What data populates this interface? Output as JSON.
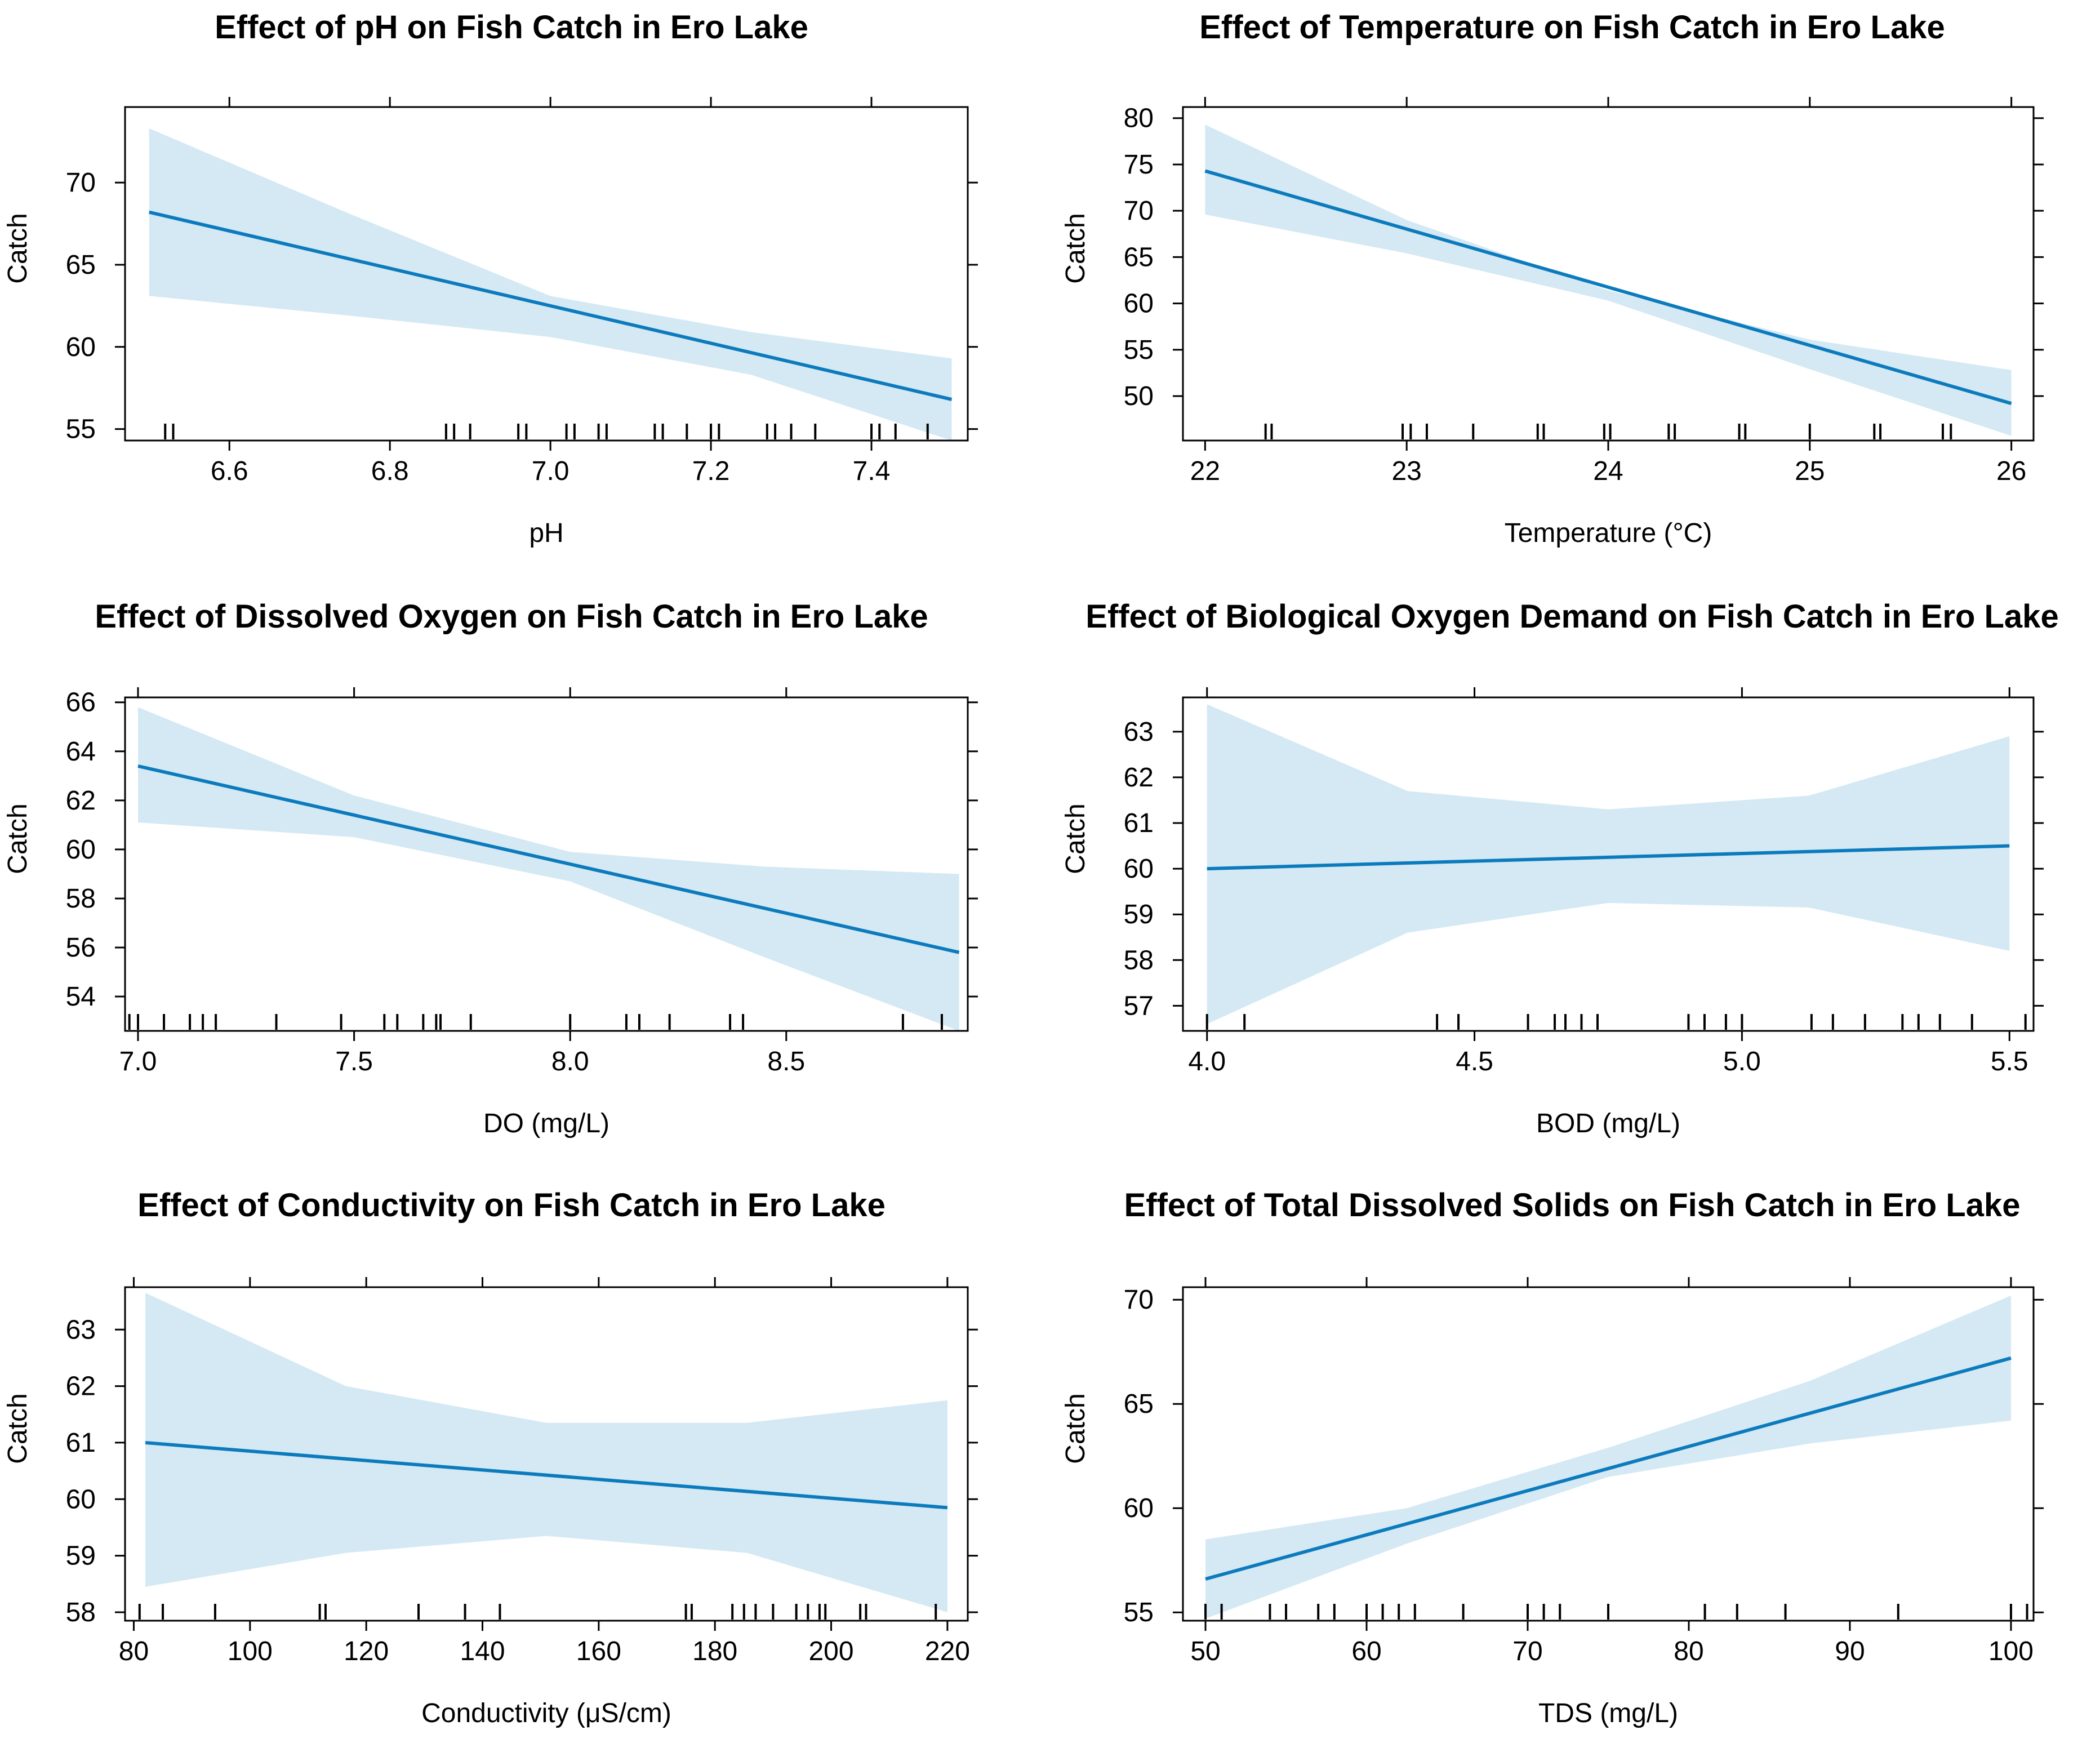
{
  "colors": {
    "line": "#0C7BBD",
    "band": "#D4E9F4",
    "axis": "#000000"
  },
  "chart_data": [
    {
      "type": "line",
      "title": "Effect of pH on Fish Catch in Ero Lake",
      "xlabel": "pH",
      "ylabel": "Catch",
      "xlim": [
        6.47,
        7.52
      ],
      "ylim": [
        54.3,
        74.6
      ],
      "xticks": [
        6.6,
        6.8,
        7.0,
        7.2,
        7.4
      ],
      "xtick_labels": [
        "6.6",
        "6.8",
        "7.0",
        "7.2",
        "7.4"
      ],
      "yticks": [
        55,
        60,
        65,
        70
      ],
      "ytick_labels": [
        "55",
        "60",
        "65",
        "70"
      ],
      "fit": {
        "x": [
          6.5,
          7.5
        ],
        "y": [
          68.2,
          56.8
        ]
      },
      "band": {
        "x": [
          6.5,
          6.75,
          7.0,
          7.25,
          7.5
        ],
        "lower": [
          63.1,
          61.9,
          60.6,
          58.3,
          54.3
        ],
        "upper": [
          73.3,
          68.1,
          63.1,
          60.9,
          59.3
        ]
      },
      "rug": [
        6.52,
        6.53,
        6.87,
        6.88,
        6.9,
        6.96,
        6.97,
        7.02,
        7.03,
        7.06,
        7.07,
        7.13,
        7.14,
        7.17,
        7.2,
        7.21,
        7.27,
        7.28,
        7.3,
        7.33,
        7.4,
        7.41,
        7.43,
        7.47
      ]
    },
    {
      "type": "line",
      "title": "Effect of Temperature on Fish Catch in Ero Lake",
      "xlabel": "Temperature (°C)",
      "ylabel": "Catch",
      "xlim": [
        21.89,
        26.11
      ],
      "ylim": [
        45.2,
        81.2
      ],
      "xticks": [
        22,
        23,
        24,
        25,
        26
      ],
      "xtick_labels": [
        "22",
        "23",
        "24",
        "25",
        "26"
      ],
      "yticks": [
        50,
        55,
        60,
        65,
        70,
        75,
        80
      ],
      "ytick_labels": [
        "50",
        "55",
        "60",
        "65",
        "70",
        "75",
        "80"
      ],
      "fit": {
        "x": [
          22,
          26
        ],
        "y": [
          74.3,
          49.2
        ]
      },
      "band": {
        "x": [
          22,
          23,
          24,
          25,
          26
        ],
        "lower": [
          69.6,
          65.4,
          60.3,
          52.9,
          45.7
        ],
        "upper": [
          79.3,
          69.0,
          61.4,
          56.1,
          52.8
        ]
      },
      "rug": [
        22.3,
        22.33,
        22.98,
        23.02,
        23.1,
        23.33,
        23.65,
        23.68,
        23.98,
        24.01,
        24.3,
        24.33,
        24.65,
        24.68,
        25.0,
        25.32,
        25.35,
        25.66,
        25.7
      ]
    },
    {
      "type": "line",
      "title": "Effect of Dissolved Oxygen on Fish Catch in Ero Lake",
      "xlabel": "DO (mg/L)",
      "ylabel": "Catch",
      "xlim": [
        6.97,
        8.92
      ],
      "ylim": [
        52.6,
        66.2
      ],
      "xticks": [
        7.0,
        7.5,
        8.0,
        8.5
      ],
      "xtick_labels": [
        "7.0",
        "7.5",
        "8.0",
        "8.5"
      ],
      "yticks": [
        54,
        56,
        58,
        60,
        62,
        64,
        66
      ],
      "ytick_labels": [
        "54",
        "56",
        "58",
        "60",
        "62",
        "64",
        "66"
      ],
      "fit": {
        "x": [
          7.0,
          8.9
        ],
        "y": [
          63.4,
          55.8
        ]
      },
      "band": {
        "x": [
          7.0,
          7.5,
          8.0,
          8.45,
          8.9
        ],
        "lower": [
          61.1,
          60.5,
          58.7,
          55.6,
          52.6
        ],
        "upper": [
          65.8,
          62.2,
          59.9,
          59.3,
          59.0
        ]
      },
      "rug": [
        6.98,
        7.0,
        7.06,
        7.12,
        7.15,
        7.18,
        7.32,
        7.47,
        7.57,
        7.6,
        7.66,
        7.69,
        7.7,
        7.77,
        8.0,
        8.13,
        8.16,
        8.23,
        8.37,
        8.4,
        8.77,
        8.86
      ]
    },
    {
      "type": "line",
      "title": "Effect of Biological Oxygen Demand on Fish Catch in Ero Lake",
      "xlabel": "BOD (mg/L)",
      "ylabel": "Catch",
      "xlim": [
        3.955,
        5.545
      ],
      "ylim": [
        56.45,
        63.75
      ],
      "xticks": [
        4.0,
        4.5,
        5.0,
        5.5
      ],
      "xtick_labels": [
        "4.0",
        "4.5",
        "5.0",
        "5.5"
      ],
      "yticks": [
        57,
        58,
        59,
        60,
        61,
        62,
        63
      ],
      "ytick_labels": [
        "57",
        "58",
        "59",
        "60",
        "61",
        "62",
        "63"
      ],
      "fit": {
        "x": [
          4.0,
          5.5
        ],
        "y": [
          60.0,
          60.5
        ]
      },
      "band": {
        "x": [
          4.0,
          4.375,
          4.75,
          5.125,
          5.5
        ],
        "lower": [
          56.6,
          58.6,
          59.25,
          59.15,
          58.2
        ],
        "upper": [
          63.6,
          61.7,
          61.3,
          61.6,
          62.9
        ]
      },
      "rug": [
        4.0,
        4.07,
        4.43,
        4.47,
        4.6,
        4.65,
        4.67,
        4.7,
        4.73,
        4.9,
        4.93,
        4.97,
        5.0,
        5.13,
        5.17,
        5.23,
        5.3,
        5.33,
        5.37,
        5.43,
        5.53
      ]
    },
    {
      "type": "line",
      "title": "Effect of Conductivity on Fish Catch in Ero Lake",
      "xlabel": "Conductivity (μS/cm)",
      "ylabel": "Catch",
      "xlim": [
        78.5,
        223.5
      ],
      "ylim": [
        57.85,
        63.75
      ],
      "xticks": [
        80,
        100,
        120,
        140,
        160,
        180,
        200,
        220
      ],
      "xtick_labels": [
        "80",
        "100",
        "120",
        "140",
        "160",
        "180",
        "200",
        "220"
      ],
      "yticks": [
        58,
        59,
        60,
        61,
        62,
        63
      ],
      "ytick_labels": [
        "58",
        "59",
        "60",
        "61",
        "62",
        "63"
      ],
      "fit": {
        "x": [
          82,
          220
        ],
        "y": [
          61.0,
          59.85
        ]
      },
      "band": {
        "x": [
          82,
          116.5,
          151,
          185.5,
          220
        ],
        "lower": [
          58.45,
          59.05,
          59.35,
          59.05,
          58.0
        ],
        "upper": [
          63.65,
          62.0,
          61.35,
          61.35,
          61.75
        ]
      },
      "rug": [
        81,
        85,
        94,
        112,
        113,
        129,
        137,
        143,
        175,
        176,
        183,
        185,
        187,
        190,
        194,
        196,
        198,
        199,
        205,
        206,
        218
      ]
    },
    {
      "type": "line",
      "title": "Effect of Total Dissolved Solids on Fish Catch in Ero Lake",
      "xlabel": "TDS (mg/L)",
      "ylabel": "Catch",
      "xlim": [
        48.6,
        101.4
      ],
      "ylim": [
        54.6,
        70.6
      ],
      "xticks": [
        50,
        60,
        70,
        80,
        90,
        100
      ],
      "xtick_labels": [
        "50",
        "60",
        "70",
        "80",
        "90",
        "100"
      ],
      "yticks": [
        55,
        60,
        65,
        70
      ],
      "ytick_labels": [
        "55",
        "60",
        "65",
        "70"
      ],
      "fit": {
        "x": [
          50,
          100
        ],
        "y": [
          56.6,
          67.2
        ]
      },
      "band": {
        "x": [
          50,
          62.5,
          75,
          87.5,
          100
        ],
        "lower": [
          54.7,
          58.3,
          61.5,
          63.1,
          64.2
        ],
        "upper": [
          58.5,
          60.0,
          62.9,
          66.1,
          70.2
        ]
      },
      "rug": [
        50,
        51,
        54,
        55,
        57,
        58,
        60,
        61,
        62,
        63,
        66,
        70,
        71,
        72,
        75,
        81,
        83,
        86,
        93,
        100,
        101
      ]
    }
  ]
}
